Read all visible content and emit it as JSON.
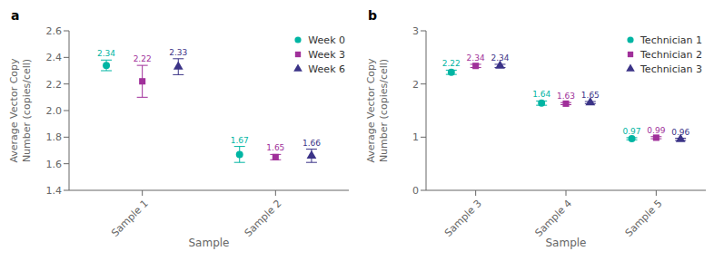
{
  "chart_data": [
    {
      "type": "scatter",
      "title": "a",
      "x_label": "Sample",
      "y_label": "Average Vector Copy\nNumber (copies/cell)",
      "categories": [
        "Sample 1",
        "Sample 2"
      ],
      "series": [
        {
          "name": "Week 0",
          "color": "#00B5A3",
          "marker": "circle",
          "values": [
            2.34,
            1.67
          ],
          "errors": [
            0.04,
            0.06
          ]
        },
        {
          "name": "Week 3",
          "color": "#A0309A",
          "marker": "square",
          "values": [
            2.22,
            1.65
          ],
          "errors": [
            0.12,
            0.02
          ]
        },
        {
          "name": "Week 6",
          "color": "#3B3387",
          "marker": "triangle",
          "values": [
            2.33,
            1.66
          ],
          "errors": [
            0.06,
            0.05
          ]
        }
      ],
      "ylim": [
        1.4,
        2.6
      ],
      "yticks": [
        1.4,
        1.6,
        1.8,
        {
          "value": 2,
          "label": "2.0"
        },
        2.2,
        2.4,
        2.6
      ],
      "legend": "upper right",
      "data_labels": true,
      "grid": false
    },
    {
      "type": "scatter",
      "title": "b",
      "x_label": "Sample",
      "y_label": "Average Vector Copy\nNumber (copies/cell)",
      "categories": [
        "Sample 3",
        "Sample 4",
        "Sample 5"
      ],
      "series": [
        {
          "name": "Technician 1",
          "color": "#00B5A3",
          "marker": "circle",
          "values": [
            2.22,
            1.64,
            0.97
          ],
          "errors": [
            0.04,
            0.04,
            0.02
          ]
        },
        {
          "name": "Technician 2",
          "color": "#A0309A",
          "marker": "square",
          "values": [
            2.34,
            1.63,
            0.99
          ],
          "errors": [
            0.03,
            0.02,
            0.02
          ]
        },
        {
          "name": "Technician 3",
          "color": "#3B3387",
          "marker": "triangle",
          "values": [
            2.34,
            1.65,
            0.96
          ],
          "errors": [
            0.03,
            0.02,
            0.02
          ]
        }
      ],
      "ylim": [
        0,
        3
      ],
      "yticks": [
        0,
        1,
        2,
        3
      ],
      "legend": "upper right",
      "data_labels": true,
      "grid": false
    }
  ]
}
